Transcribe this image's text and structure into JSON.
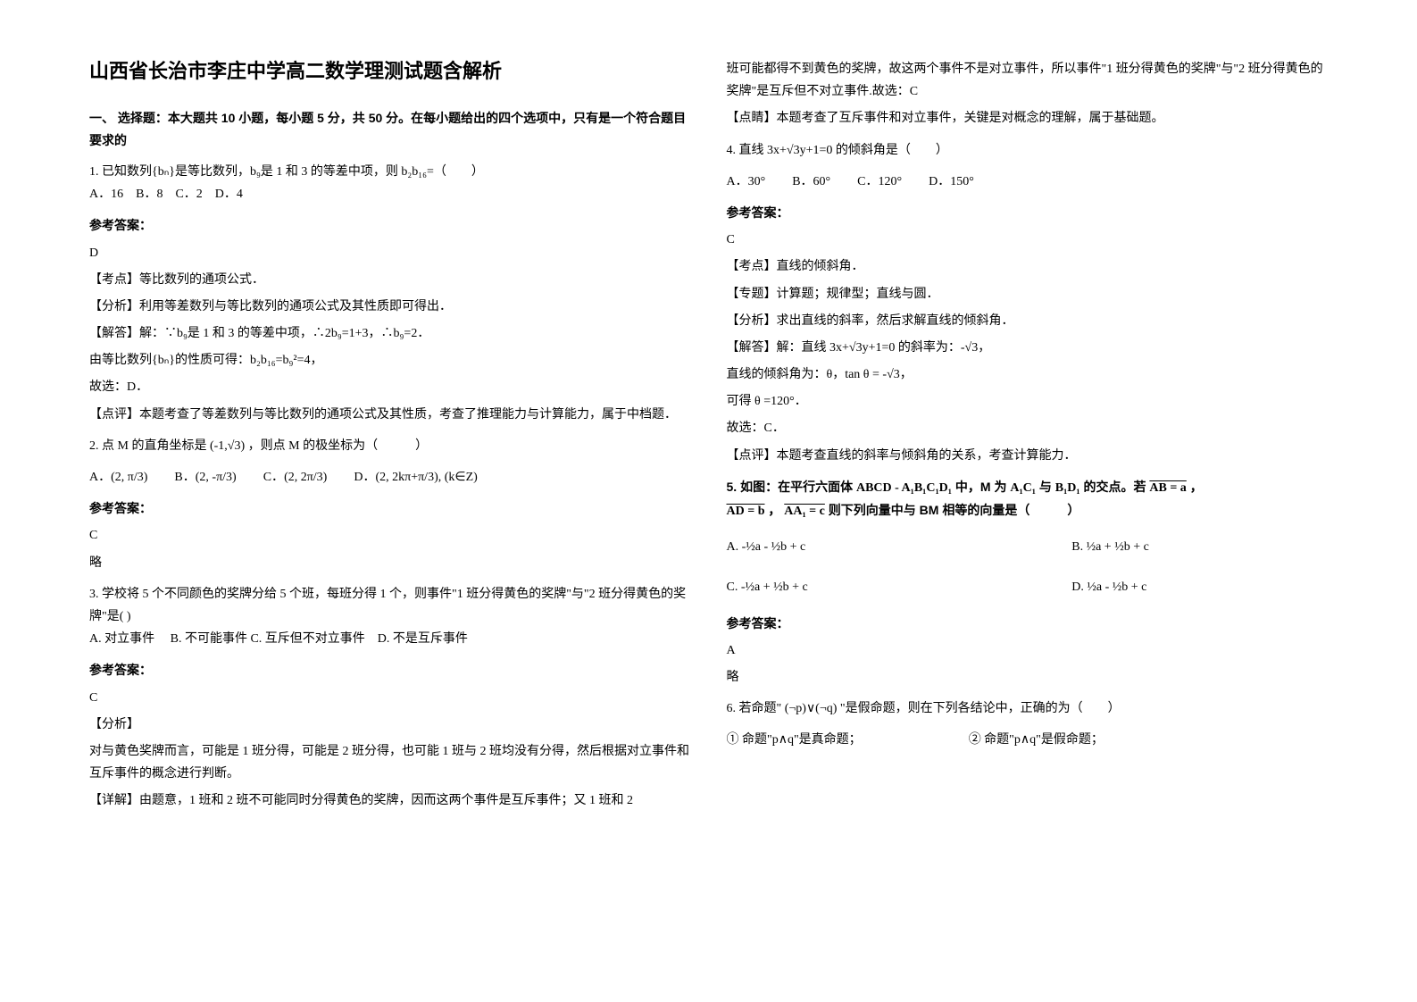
{
  "title": "山西省长治市李庄中学高二数学理测试题含解析",
  "section1_header": "一、 选择题：本大题共 10 小题，每小题 5 分，共 50 分。在每小题给出的四个选项中，只有是一个符合题目要求的",
  "q1": {
    "text": "1. 已知数列{bₙ}是等比数列，b₉是 1 和 3 的等差中项，则 b₂b₁₆=（　　）",
    "options": "A．16　B．8　C．2　D．4",
    "answer_label": "参考答案：",
    "answer": "D",
    "kaodian": "【考点】等比数列的通项公式．",
    "fenxi": "【分析】利用等差数列与等比数列的通项公式及其性质即可得出．",
    "jieda": "【解答】解：∵b₉是 1 和 3 的等差中项，∴2b₉=1+3，∴b₉=2．",
    "jieda2": "由等比数列{bₙ}的性质可得：b₂b₁₆=b₉²=4，",
    "jieda3": "故选：D．",
    "dianping": "【点评】本题考查了等差数列与等比数列的通项公式及其性质，考查了推理能力与计算能力，属于中档题．"
  },
  "q2": {
    "text_prefix": "2. 点 M 的直角坐标是",
    "coord": "(-1,√3)",
    "text_suffix": "，则点 M 的极坐标为（　　　）",
    "optA_label": "A．",
    "optA": "(2, π/3)",
    "optB_label": "B．",
    "optB": "(2, -π/3)",
    "optC_label": "C．",
    "optC": "(2, 2π/3)",
    "optD_label": "D．",
    "optD": "(2, 2kπ+π/3), (k∈Z)",
    "answer_label": "参考答案：",
    "answer": "C",
    "lue": "略"
  },
  "q3": {
    "text": "3. 学校将 5 个不同颜色的奖牌分给 5 个班，每班分得 1 个，则事件\"1 班分得黄色的奖牌\"与\"2 班分得黄色的奖牌\"是( )",
    "options": "A. 对立事件　 B. 不可能事件 C. 互斥但不对立事件　D. 不是互斥事件",
    "answer_label": "参考答案：",
    "answer": "C",
    "fenxi_label": "【分析】",
    "fenxi": "对与黄色奖牌而言，可能是 1 班分得，可能是 2 班分得，也可能 1 班与 2 班均没有分得，然后根据对立事件和互斥事件的概念进行判断。",
    "xiangjie_prefix": "【详解】由题意，1 班和 2 班不可能同时分得黄色的奖牌，因而这两个事件是互斥事件；又 1 班和 2",
    "xiangjie_cont": "班可能都得不到黄色的奖牌，故这两个事件不是对立事件，所以事件\"1 班分得黄色的奖牌\"与\"2 班分得黄色的奖牌\"是互斥但不对立事件.故选：C",
    "dianqing": "【点睛】本题考查了互斥事件和对立事件，关键是对概念的理解，属于基础题。"
  },
  "q4": {
    "text": "4. 直线 3x+√3y+1=0 的倾斜角是（　　）",
    "optA": "A．30°",
    "optB": "B．60°",
    "optC": "C．120°",
    "optD": "D．150°",
    "answer_label": "参考答案：",
    "answer": "C",
    "kaodian": "【考点】直线的倾斜角．",
    "zhuanti": "【专题】计算题；规律型；直线与圆．",
    "fenxi": "【分析】求出直线的斜率，然后求解直线的倾斜角．",
    "jieda1": "【解答】解：直线 3x+√3y+1=0 的斜率为：-√3，",
    "jieda2": "直线的倾斜角为：θ，tan θ = -√3，",
    "jieda3": "可得 θ =120°．",
    "jieda4": "故选：C．",
    "dianping": "【点评】本题考查直线的斜率与倾斜角的关系，考查计算能力．"
  },
  "q5": {
    "text_prefix": "5. 如图：在平行六面体",
    "cube": "ABCD - A₁B₁C₁D₁",
    "text_mid": "中，M 为",
    "diag1": "A₁C₁",
    "text_mid2": "与",
    "diag2": "B₁D₁",
    "text_mid3": "的交点。若",
    "vec_ab": "AB = a",
    "text_end": "，",
    "vec_ad": "AD = b",
    "comma": "，",
    "vec_aa1": "AA₁ = c",
    "text_end2": " 则下列向量中与 BM 相等的向量是（　　　）",
    "optA_label": "A.",
    "optA": "-½a - ½b + c",
    "optB_label": "B.",
    "optB": "½a + ½b + c",
    "optC_label": "C.",
    "optC": "-½a + ½b + c",
    "optD_label": "D.",
    "optD": "½a - ½b + c",
    "answer_label": "参考答案：",
    "answer": "A",
    "lue": "略"
  },
  "q6": {
    "text_prefix": "6. 若命题\"",
    "prop": "(¬p)∨(¬q)",
    "text_suffix": "\"是假命题，则在下列各结论中，正确的为（　　）",
    "opt1_prefix": "① 命题\"",
    "opt1_prop": "p∧q",
    "opt1_suffix": "\"是真命题；",
    "opt2_prefix": "② 命题\"",
    "opt2_prop": "p∧q",
    "opt2_suffix": "\"是假命题；"
  }
}
